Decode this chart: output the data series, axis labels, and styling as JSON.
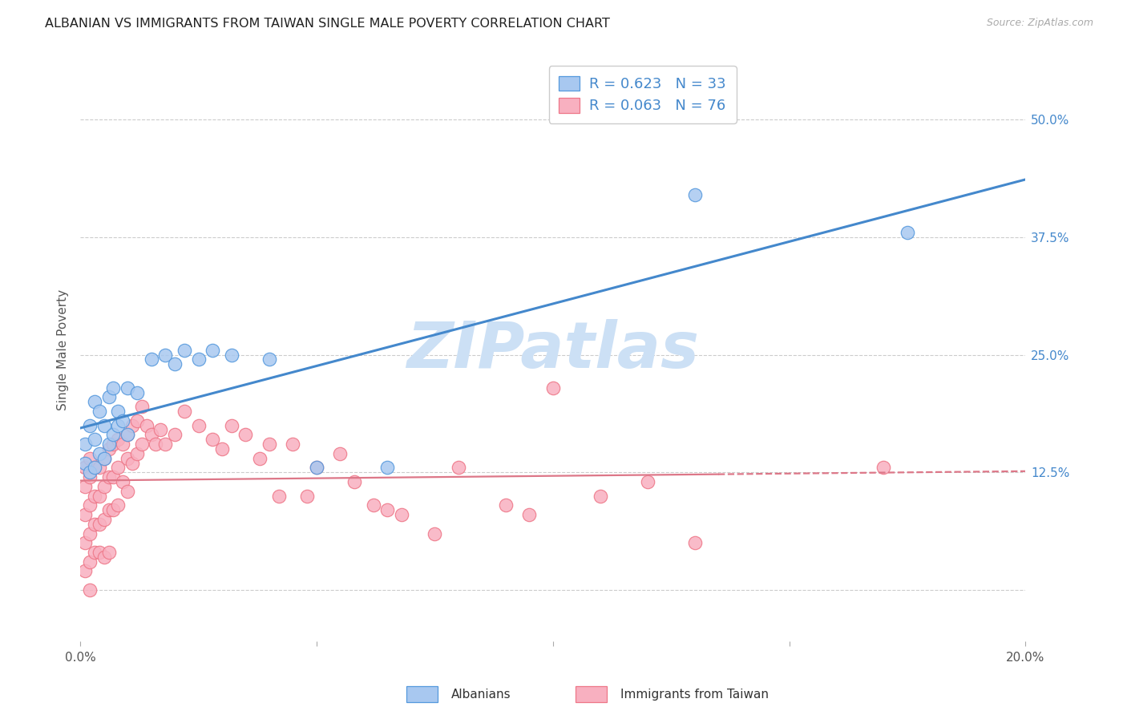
{
  "title": "ALBANIAN VS IMMIGRANTS FROM TAIWAN SINGLE MALE POVERTY CORRELATION CHART",
  "source": "Source: ZipAtlas.com",
  "ylabel": "Single Male Poverty",
  "xlim": [
    0.0,
    0.2
  ],
  "ylim": [
    -0.055,
    0.565
  ],
  "color_albanian_fill": "#a8c8f0",
  "color_albanian_edge": "#5599dd",
  "color_taiwan_fill": "#f8b0c0",
  "color_taiwan_edge": "#ee7788",
  "color_line_albanian": "#4488cc",
  "color_line_taiwan": "#dd7788",
  "background_color": "#ffffff",
  "grid_color": "#cccccc",
  "title_fontsize": 11.5,
  "watermark_color": "#cce0f5",
  "watermark_fontsize": 58,
  "legend_label1": "Albanians",
  "legend_label2": "Immigrants from Taiwan",
  "albanians_x": [
    0.001,
    0.001,
    0.002,
    0.002,
    0.003,
    0.003,
    0.003,
    0.004,
    0.004,
    0.005,
    0.005,
    0.006,
    0.006,
    0.007,
    0.007,
    0.008,
    0.008,
    0.009,
    0.01,
    0.01,
    0.012,
    0.015,
    0.018,
    0.02,
    0.022,
    0.025,
    0.028,
    0.032,
    0.04,
    0.05,
    0.065,
    0.13,
    0.175
  ],
  "albanians_y": [
    0.135,
    0.155,
    0.125,
    0.175,
    0.13,
    0.16,
    0.2,
    0.145,
    0.19,
    0.14,
    0.175,
    0.155,
    0.205,
    0.165,
    0.215,
    0.175,
    0.19,
    0.18,
    0.165,
    0.215,
    0.21,
    0.245,
    0.25,
    0.24,
    0.255,
    0.245,
    0.255,
    0.25,
    0.245,
    0.13,
    0.13,
    0.42,
    0.38
  ],
  "taiwan_x": [
    0.001,
    0.001,
    0.001,
    0.001,
    0.001,
    0.002,
    0.002,
    0.002,
    0.002,
    0.002,
    0.002,
    0.003,
    0.003,
    0.003,
    0.003,
    0.004,
    0.004,
    0.004,
    0.004,
    0.005,
    0.005,
    0.005,
    0.005,
    0.006,
    0.006,
    0.006,
    0.006,
    0.007,
    0.007,
    0.007,
    0.008,
    0.008,
    0.008,
    0.009,
    0.009,
    0.01,
    0.01,
    0.01,
    0.011,
    0.011,
    0.012,
    0.012,
    0.013,
    0.013,
    0.014,
    0.015,
    0.016,
    0.017,
    0.018,
    0.02,
    0.022,
    0.025,
    0.028,
    0.03,
    0.032,
    0.035,
    0.038,
    0.04,
    0.042,
    0.045,
    0.048,
    0.05,
    0.055,
    0.058,
    0.062,
    0.065,
    0.068,
    0.075,
    0.08,
    0.09,
    0.095,
    0.1,
    0.11,
    0.12,
    0.13,
    0.17
  ],
  "taiwan_y": [
    0.13,
    0.11,
    0.08,
    0.05,
    0.02,
    0.14,
    0.12,
    0.09,
    0.06,
    0.03,
    0.0,
    0.13,
    0.1,
    0.07,
    0.04,
    0.13,
    0.1,
    0.07,
    0.04,
    0.14,
    0.11,
    0.075,
    0.035,
    0.15,
    0.12,
    0.085,
    0.04,
    0.155,
    0.12,
    0.085,
    0.16,
    0.13,
    0.09,
    0.155,
    0.115,
    0.165,
    0.14,
    0.105,
    0.175,
    0.135,
    0.18,
    0.145,
    0.195,
    0.155,
    0.175,
    0.165,
    0.155,
    0.17,
    0.155,
    0.165,
    0.19,
    0.175,
    0.16,
    0.15,
    0.175,
    0.165,
    0.14,
    0.155,
    0.1,
    0.155,
    0.1,
    0.13,
    0.145,
    0.115,
    0.09,
    0.085,
    0.08,
    0.06,
    0.13,
    0.09,
    0.08,
    0.215,
    0.1,
    0.115,
    0.05,
    0.13
  ]
}
